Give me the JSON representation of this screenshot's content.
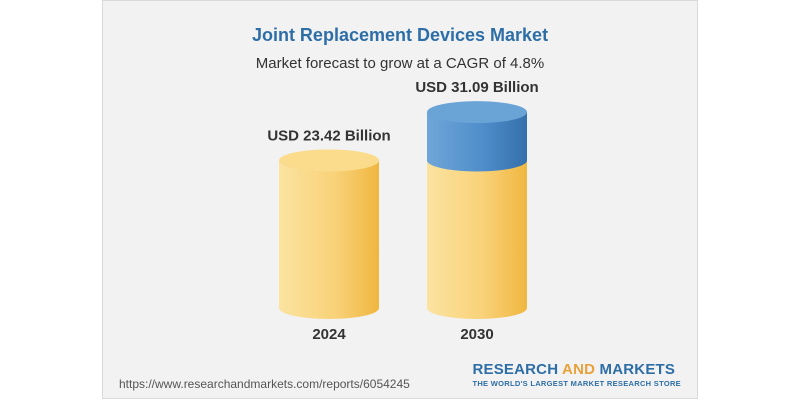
{
  "header": {
    "title": "Joint Replacement Devices Market",
    "subtitle": "Market forecast to grow at a CAGR of 4.8%"
  },
  "chart_data": {
    "type": "bar",
    "title": "Joint Replacement Devices Market",
    "subtitle": "Market forecast to grow at a CAGR of 4.8%",
    "categories": [
      "2024",
      "2030"
    ],
    "values": [
      23.42,
      31.09
    ],
    "value_labels": [
      "USD 23.42 Billion",
      "USD 31.09 Billion"
    ],
    "unit": "USD Billion",
    "xlabel": "",
    "ylabel": "",
    "grid": false,
    "colors": {
      "base": "#f5c04a",
      "base_light": "#fbe3a0",
      "growth": "#3f7fbf",
      "growth_light": "#6fa6d8"
    }
  },
  "footer": {
    "source_url": "https://www.researchandmarkets.com/reports/6054245",
    "brand_part1": "RESEARCH ",
    "brand_part2": "AND",
    "brand_part3": " MARKETS",
    "tagline": "THE WORLD'S LARGEST MARKET RESEARCH STORE"
  }
}
